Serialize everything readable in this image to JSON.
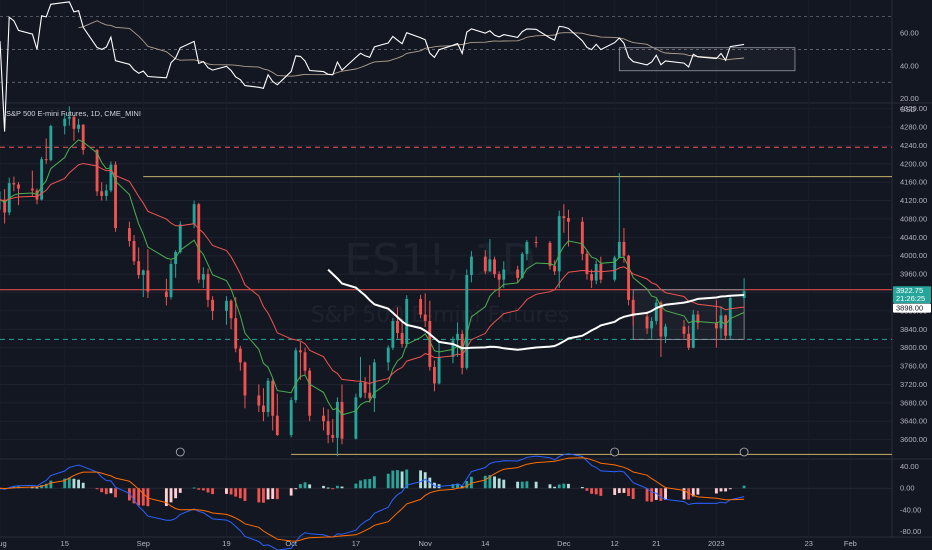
{
  "symbol_line": "S&P 500 E-mini Futures, 1D, CME_MINI",
  "currency": "USD",
  "watermark": {
    "ticker": "ES1!, 1D",
    "name": "S&P 500 E-mini Futures"
  },
  "time_axis": [
    "Aug",
    "15",
    "Sep",
    "19",
    "Oct",
    "17",
    "Nov",
    "14",
    "Dec",
    "12",
    "21",
    "2023",
    "23",
    "Feb"
  ],
  "rsi_axis": [
    "60.00",
    "40.00",
    "20.00"
  ],
  "price_axis": [
    "4320.00",
    "4280.00",
    "4240.00",
    "4200.00",
    "4160.00",
    "4120.00",
    "4080.00",
    "4040.00",
    "4000.00",
    "3960.00",
    "3920.00",
    "3880.00",
    "3840.00",
    "3800.00",
    "3760.00",
    "3720.00",
    "3680.00",
    "3640.00",
    "3600.00",
    "3560.00"
  ],
  "macd_axis": [
    "40.00",
    "0.00",
    "-40.00",
    "-80.00"
  ],
  "price_badges": [
    {
      "label": "3922.75",
      "color": "#26a69a"
    },
    {
      "label": "21:26:25",
      "color": "#26a69a"
    },
    {
      "label": "3898.00",
      "color": "#ffffff"
    }
  ],
  "colors": {
    "up": "#26a69a",
    "down": "#ef5350",
    "ema_fast": "#4caf50",
    "ema_slow": "#ef5350",
    "sma_long": "#ffffff",
    "macd": "#2962ff",
    "signal": "#ff6d00"
  },
  "chart_data": {
    "type": "candlestick",
    "title": "S&P 500 E-mini Futures, 1D, CME_MINI",
    "timeframe": "1D",
    "x_range": [
      "2022-08-01",
      "2023-02-10"
    ],
    "ylim": [
      3560,
      4330
    ],
    "ohlc": [
      [
        "2022-08-01",
        4120,
        4140,
        4100,
        4122
      ],
      [
        "2022-08-02",
        4122,
        4145,
        4070,
        4094
      ],
      [
        "2022-08-03",
        4094,
        4170,
        4088,
        4158
      ],
      [
        "2022-08-04",
        4158,
        4172,
        4140,
        4155
      ],
      [
        "2022-08-05",
        4155,
        4160,
        4110,
        4146
      ],
      [
        "2022-08-08",
        4146,
        4185,
        4130,
        4142
      ],
      [
        "2022-08-09",
        4142,
        4146,
        4112,
        4122
      ],
      [
        "2022-08-10",
        4122,
        4215,
        4120,
        4210
      ],
      [
        "2022-08-11",
        4210,
        4255,
        4200,
        4208
      ],
      [
        "2022-08-12",
        4208,
        4285,
        4205,
        4282
      ],
      [
        "2022-08-15",
        4282,
        4310,
        4264,
        4298
      ],
      [
        "2022-08-16",
        4298,
        4325,
        4283,
        4302
      ],
      [
        "2022-08-17",
        4302,
        4306,
        4250,
        4276
      ],
      [
        "2022-08-18",
        4276,
        4298,
        4268,
        4285
      ],
      [
        "2022-08-19",
        4285,
        4286,
        4220,
        4230
      ],
      [
        "2022-08-22",
        4230,
        4232,
        4130,
        4140
      ],
      [
        "2022-08-23",
        4140,
        4160,
        4120,
        4130
      ],
      [
        "2022-08-24",
        4130,
        4155,
        4120,
        4142
      ],
      [
        "2022-08-25",
        4142,
        4205,
        4138,
        4198
      ],
      [
        "2022-08-26",
        4198,
        4205,
        4052,
        4060
      ],
      [
        "2022-08-29",
        4060,
        4074,
        4020,
        4032
      ],
      [
        "2022-08-30",
        4032,
        4045,
        3980,
        3988
      ],
      [
        "2022-08-31",
        3988,
        4018,
        3950,
        3958
      ],
      [
        "2022-09-01",
        3958,
        3970,
        3910,
        3968
      ],
      [
        "2022-09-02",
        3968,
        4014,
        3908,
        3922
      ],
      [
        "2022-09-06",
        3922,
        3950,
        3892,
        3910
      ],
      [
        "2022-09-07",
        3910,
        3990,
        3905,
        3982
      ],
      [
        "2022-09-08",
        3982,
        4012,
        3952,
        4008
      ],
      [
        "2022-09-09",
        4008,
        4075,
        4005,
        4068
      ],
      [
        "2022-09-12",
        4068,
        4120,
        4060,
        4112
      ],
      [
        "2022-09-13",
        4112,
        4115,
        3940,
        3948
      ],
      [
        "2022-09-14",
        3948,
        3975,
        3930,
        3960
      ],
      [
        "2022-09-15",
        3960,
        3972,
        3888,
        3904
      ],
      [
        "2022-09-16",
        3904,
        3912,
        3860,
        3880
      ],
      [
        "2022-09-19",
        3880,
        3912,
        3850,
        3902
      ],
      [
        "2022-09-20",
        3902,
        3905,
        3840,
        3864
      ],
      [
        "2022-09-21",
        3864,
        3910,
        3790,
        3798
      ],
      [
        "2022-09-22",
        3798,
        3804,
        3750,
        3768
      ],
      [
        "2022-09-23",
        3768,
        3770,
        3668,
        3696
      ],
      [
        "2022-09-26",
        3696,
        3720,
        3660,
        3674
      ],
      [
        "2022-09-27",
        3674,
        3712,
        3640,
        3660
      ],
      [
        "2022-09-28",
        3660,
        3734,
        3650,
        3728
      ],
      [
        "2022-09-29",
        3728,
        3732,
        3620,
        3652
      ],
      [
        "2022-09-30",
        3652,
        3700,
        3608,
        3610
      ],
      [
        "2022-10-03",
        3610,
        3692,
        3605,
        3686
      ],
      [
        "2022-10-04",
        3686,
        3800,
        3680,
        3794
      ],
      [
        "2022-10-05",
        3794,
        3812,
        3730,
        3790
      ],
      [
        "2022-10-06",
        3790,
        3800,
        3740,
        3750
      ],
      [
        "2022-10-07",
        3750,
        3756,
        3640,
        3652
      ],
      [
        "2022-10-10",
        3652,
        3670,
        3620,
        3640
      ],
      [
        "2022-10-11",
        3640,
        3666,
        3592,
        3610
      ],
      [
        "2022-10-12",
        3610,
        3645,
        3594,
        3604
      ],
      [
        "2022-10-13",
        3604,
        3692,
        3564,
        3682
      ],
      [
        "2022-10-14",
        3682,
        3720,
        3590,
        3602
      ],
      [
        "2022-10-17",
        3602,
        3700,
        3600,
        3692
      ],
      [
        "2022-10-18",
        3692,
        3780,
        3690,
        3724
      ],
      [
        "2022-10-19",
        3724,
        3736,
        3690,
        3702
      ],
      [
        "2022-10-20",
        3702,
        3762,
        3680,
        3690
      ],
      [
        "2022-10-21",
        3690,
        3775,
        3660,
        3768
      ],
      [
        "2022-10-24",
        3768,
        3805,
        3750,
        3800
      ],
      [
        "2022-10-25",
        3800,
        3864,
        3795,
        3858
      ],
      [
        "2022-10-26",
        3858,
        3888,
        3820,
        3832
      ],
      [
        "2022-10-27",
        3832,
        3862,
        3800,
        3808
      ],
      [
        "2022-10-28",
        3808,
        3914,
        3800,
        3906
      ],
      [
        "2022-10-31",
        3906,
        3915,
        3864,
        3872
      ],
      [
        "2022-11-01",
        3872,
        3918,
        3845,
        3858
      ],
      [
        "2022-11-02",
        3858,
        3902,
        3750,
        3758
      ],
      [
        "2022-11-03",
        3758,
        3772,
        3705,
        3722
      ],
      [
        "2022-11-04",
        3722,
        3815,
        3720,
        3780
      ],
      [
        "2022-11-07",
        3780,
        3824,
        3766,
        3816
      ],
      [
        "2022-11-08",
        3816,
        3855,
        3780,
        3830
      ],
      [
        "2022-11-09",
        3830,
        3838,
        3742,
        3756
      ],
      [
        "2022-11-10",
        3756,
        3970,
        3752,
        3958
      ],
      [
        "2022-11-11",
        3958,
        4010,
        3942,
        3998
      ],
      [
        "2022-11-14",
        3998,
        4012,
        3960,
        3966
      ],
      [
        "2022-11-15",
        3966,
        4036,
        3965,
        3992
      ],
      [
        "2022-11-16",
        3992,
        3998,
        3952,
        3960
      ],
      [
        "2022-11-17",
        3960,
        3966,
        3910,
        3948
      ],
      [
        "2022-11-18",
        3948,
        3988,
        3930,
        3970
      ],
      [
        "2022-11-21",
        3970,
        3978,
        3942,
        3952
      ],
      [
        "2022-11-22",
        3952,
        4008,
        3950,
        4004
      ],
      [
        "2022-11-23",
        4004,
        4034,
        3990,
        4030
      ],
      [
        "2022-11-25",
        4030,
        4042,
        4018,
        4028
      ],
      [
        "2022-11-28",
        4028,
        4032,
        3970,
        3978
      ],
      [
        "2022-11-29",
        3978,
        3990,
        3958,
        3966
      ],
      [
        "2022-11-30",
        3966,
        4098,
        3930,
        4086
      ],
      [
        "2022-12-01",
        4086,
        4112,
        4050,
        4082
      ],
      [
        "2022-12-02",
        4082,
        4100,
        4020,
        4074
      ],
      [
        "2022-12-05",
        4074,
        4084,
        3990,
        4004
      ],
      [
        "2022-12-06",
        4004,
        4012,
        3948,
        3960
      ],
      [
        "2022-12-07",
        3960,
        3970,
        3930,
        3946
      ],
      [
        "2022-12-08",
        3946,
        3990,
        3938,
        3982
      ],
      [
        "2022-12-09",
        3982,
        3998,
        3940,
        3948
      ],
      [
        "2022-12-12",
        3948,
        4000,
        3944,
        3996
      ],
      [
        "2022-12-13",
        3996,
        4180,
        3996,
        4030
      ],
      [
        "2022-12-14",
        4030,
        4060,
        3985,
        4000
      ],
      [
        "2022-12-15",
        4000,
        4002,
        3892,
        3904
      ],
      [
        "2022-12-16",
        3904,
        3912,
        3848,
        3868
      ],
      [
        "2022-12-19",
        3868,
        3878,
        3830,
        3842
      ],
      [
        "2022-12-20",
        3842,
        3866,
        3820,
        3858
      ],
      [
        "2022-12-21",
        3858,
        3906,
        3850,
        3898
      ],
      [
        "2022-12-22",
        3898,
        3902,
        3780,
        3824
      ],
      [
        "2022-12-23",
        3824,
        3852,
        3810,
        3846
      ],
      [
        "2022-12-27",
        3846,
        3860,
        3820,
        3830
      ],
      [
        "2022-12-28",
        3830,
        3848,
        3795,
        3800
      ],
      [
        "2022-12-29",
        3800,
        3882,
        3798,
        3872
      ],
      [
        "2022-12-30",
        3872,
        3880,
        3840,
        3854
      ],
      [
        "2023-01-03",
        3854,
        3904,
        3800,
        3842
      ],
      [
        "2023-01-04",
        3842,
        3890,
        3820,
        3870
      ],
      [
        "2023-01-05",
        3870,
        3872,
        3816,
        3826
      ],
      [
        "2023-01-06",
        3826,
        3915,
        3818,
        3908
      ],
      [
        "2023-01-09",
        3908,
        3951,
        3900,
        3922.75
      ]
    ],
    "moving_averages": [
      {
        "name": "EMA 8",
        "period": 8,
        "type": "ema"
      },
      {
        "name": "EMA 21",
        "period": 21,
        "type": "ema"
      },
      {
        "name": "SMA 50",
        "period": 50,
        "type": "sma"
      }
    ],
    "horizontal_levels": [
      {
        "price": 4236,
        "style": "dashed",
        "color": "#ef5350"
      },
      {
        "price": 4172,
        "style": "solid",
        "color": "#c9b16a"
      },
      {
        "price": 3926,
        "style": "solid",
        "color": "#ef5350"
      },
      {
        "price": 3818,
        "style": "dashed",
        "color": "#26a69a"
      },
      {
        "price": 3568,
        "style": "solid",
        "color": "#c9b16a"
      }
    ],
    "range_box": {
      "from": "2022-12-16",
      "to": "2023-01-09",
      "top": 3926,
      "bottom": 3818
    },
    "last_price": 3922.75,
    "rsi": {
      "ylim": [
        18,
        80
      ],
      "levels": [
        70,
        50,
        30
      ],
      "box": {
        "from": "2022-12-13",
        "to": "2023-01-20",
        "top": 51,
        "bottom": 37
      }
    },
    "macd": {
      "ylim": [
        -88,
        52
      ],
      "fast": 12,
      "slow": 26,
      "signal": 9
    },
    "markers": [
      "2022-09-09",
      "2022-12-12",
      "2023-01-09"
    ]
  }
}
